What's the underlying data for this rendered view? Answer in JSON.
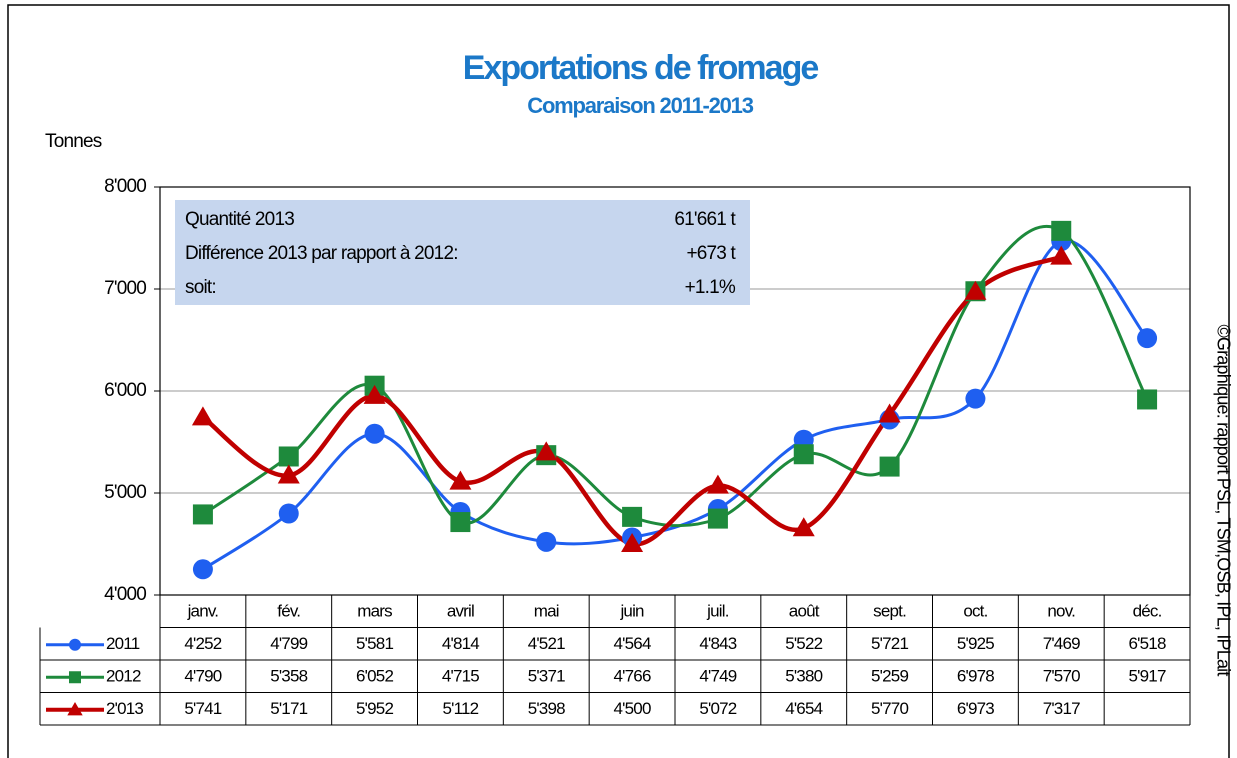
{
  "chart_data": {
    "type": "line",
    "title": "Exportations de fromage",
    "subtitle": "Comparaison 2011-2013",
    "y_label": "Tonnes",
    "source": "©Graphique: rapport PSL, TSM,OSB, IPL, IPLait",
    "annotation": {
      "rows": [
        [
          "Quantité 2013",
          "61'661 t"
        ],
        [
          "Différence 2013 par rapport à 2012:",
          "+673 t"
        ],
        [
          "soit:",
          "+1.1%"
        ]
      ]
    },
    "categories": [
      "janv.",
      "fév.",
      "mars",
      "avril",
      "mai",
      "juin",
      "juil.",
      "août",
      "sept.",
      "oct.",
      "nov.",
      "déc."
    ],
    "ylim": [
      4000,
      8000
    ],
    "yticks": [
      {
        "value": 4000,
        "label": "4'000"
      },
      {
        "value": 5000,
        "label": "5'000"
      },
      {
        "value": 6000,
        "label": "6'000"
      },
      {
        "value": 7000,
        "label": "7'000"
      },
      {
        "value": 8000,
        "label": "8'000"
      }
    ],
    "grid": true,
    "series": [
      {
        "name": "2011",
        "color": "#1f5ff0",
        "marker": "circle",
        "values": [
          4252,
          4799,
          5581,
          4814,
          4521,
          4564,
          4843,
          5522,
          5721,
          5925,
          7469,
          6518
        ],
        "value_labels": [
          "4'252",
          "4'799",
          "5'581",
          "4'814",
          "4'521",
          "4'564",
          "4'843",
          "5'522",
          "5'721",
          "5'925",
          "7'469",
          "6'518"
        ]
      },
      {
        "name": "2012",
        "color": "#1e8a3c",
        "marker": "square",
        "values": [
          4790,
          5358,
          6052,
          4715,
          5371,
          4766,
          4749,
          5380,
          5259,
          6978,
          7570,
          5917
        ],
        "value_labels": [
          "4'790",
          "5'358",
          "6'052",
          "4'715",
          "5'371",
          "4'766",
          "4'749",
          "5'380",
          "5'259",
          "6'978",
          "7'570",
          "5'917"
        ]
      },
      {
        "name": "2'013",
        "color": "#c00000",
        "marker": "triangle",
        "values": [
          5741,
          5171,
          5952,
          5112,
          5398,
          4500,
          5072,
          4654,
          5770,
          6973,
          7317,
          null
        ],
        "value_labels": [
          "5'741",
          "5'171",
          "5'952",
          "5'112",
          "5'398",
          "4'500",
          "5'072",
          "4'654",
          "5'770",
          "6'973",
          "7'317",
          null
        ]
      }
    ]
  }
}
